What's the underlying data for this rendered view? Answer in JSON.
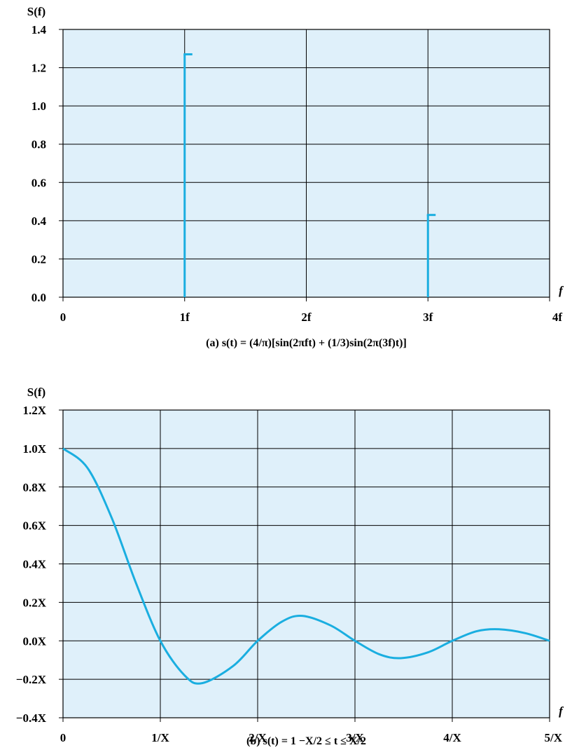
{
  "chart_data": [
    {
      "type": "stem",
      "ylabel": "S(f)",
      "xlabel": "f",
      "x_tick_labels": [
        "0",
        "1f",
        "2f",
        "3f",
        "4f"
      ],
      "y_tick_labels": [
        "0.0",
        "0.2",
        "0.4",
        "0.6",
        "0.8",
        "1.0",
        "1.2",
        "1.4"
      ],
      "ylim": [
        0,
        1.4
      ],
      "xlim": [
        0,
        4
      ],
      "grid": true,
      "stems": [
        {
          "x": 1,
          "y": 1.27
        },
        {
          "x": 3,
          "y": 0.43
        }
      ],
      "caption": "(a) s(t) = (4/π)[sin(2πft) + (1/3)sin(2π(3f)t)]",
      "color": "#1aaee0"
    },
    {
      "type": "line",
      "ylabel": "S(f)",
      "xlabel": "f",
      "x_tick_labels": [
        "0",
        "1/X",
        "2/X",
        "3/X",
        "4/X",
        "5/X"
      ],
      "y_tick_labels": [
        "−0.4X",
        "−0.2X",
        "0.0X",
        "0.2X",
        "0.4X",
        "0.6X",
        "0.8X",
        "1.0X",
        "1.2X"
      ],
      "ylim": [
        -0.4,
        1.2
      ],
      "xlim": [
        0,
        5
      ],
      "grid": true,
      "x": [
        0,
        0.25,
        0.5,
        0.75,
        1.0,
        1.25,
        1.43,
        1.75,
        2.0,
        2.25,
        2.46,
        2.75,
        3.0,
        3.25,
        3.47,
        3.75,
        4.0,
        4.25,
        4.48,
        4.75,
        5.0
      ],
      "y": [
        1.0,
        0.9,
        0.64,
        0.3,
        0.0,
        -0.18,
        -0.22,
        -0.13,
        0.0,
        0.1,
        0.13,
        0.08,
        0.0,
        -0.07,
        -0.09,
        -0.06,
        0.0,
        0.05,
        0.06,
        0.04,
        0.0
      ],
      "caption": "(b) s(t) = 1        −X/2 ≤ t ≤ X/2",
      "color": "#1aaee0"
    }
  ]
}
